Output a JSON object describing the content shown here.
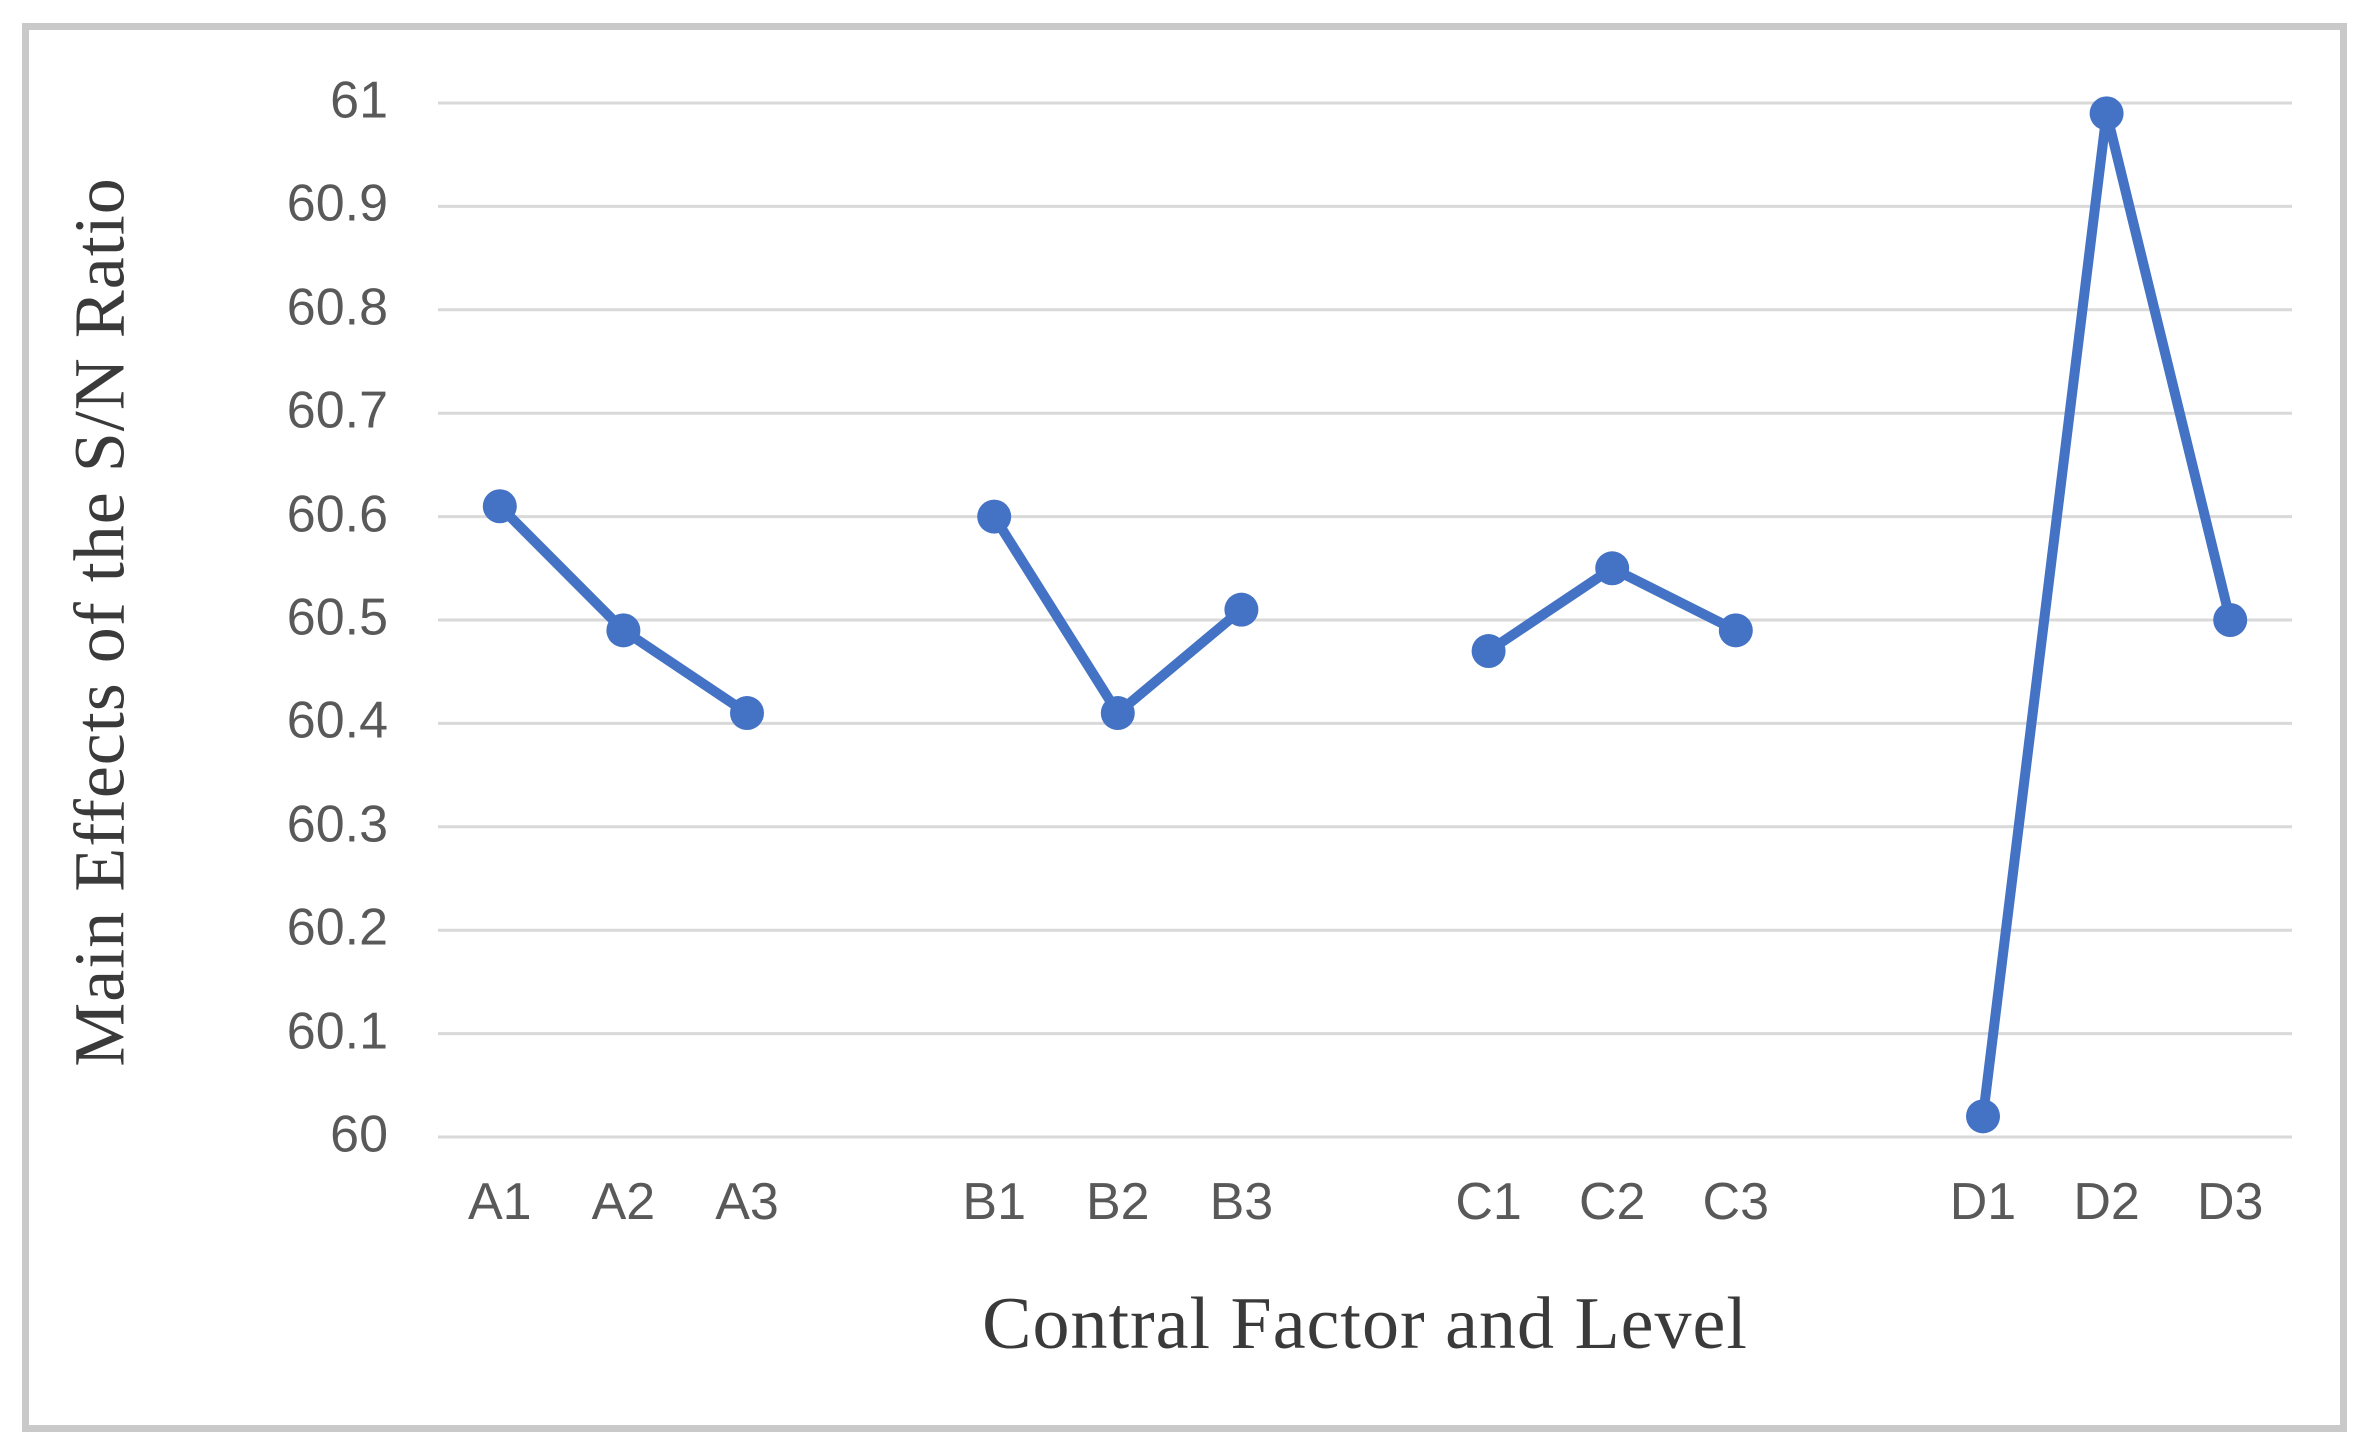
{
  "figure": {
    "background_color": "#ffffff",
    "border_color": "#c9c9c9"
  },
  "chart_data": {
    "type": "line",
    "title": "",
    "xlabel": "Contral Factor and Level",
    "ylabel": "Main Effects of the S/N Ratio",
    "ylim": [
      60,
      61
    ],
    "y_tick_step": 0.1,
    "y_tick_labels": [
      "61",
      "60.9",
      "60.8",
      "60.7",
      "60.6",
      "60.5",
      "60.4",
      "60.3",
      "60.2",
      "60.1",
      "60"
    ],
    "grid": "horizontal",
    "legend_position": "none",
    "line_color": "#4472c4",
    "marker_color": "#4472c4",
    "gridline_color": "#d9d9d9",
    "tick_label_color": "#595959",
    "axis_title_color": "#3a3a3a",
    "series": [
      {
        "name": "A",
        "categories": [
          "A1",
          "A2",
          "A3"
        ],
        "values": [
          60.61,
          60.49,
          60.41
        ]
      },
      {
        "name": "B",
        "categories": [
          "B1",
          "B2",
          "B3"
        ],
        "values": [
          60.6,
          60.41,
          60.51
        ]
      },
      {
        "name": "C",
        "categories": [
          "C1",
          "C2",
          "C3"
        ],
        "values": [
          60.47,
          60.55,
          60.49
        ]
      },
      {
        "name": "D",
        "categories": [
          "D1",
          "D2",
          "D3"
        ],
        "values": [
          60.02,
          60.99,
          60.5
        ]
      }
    ]
  }
}
